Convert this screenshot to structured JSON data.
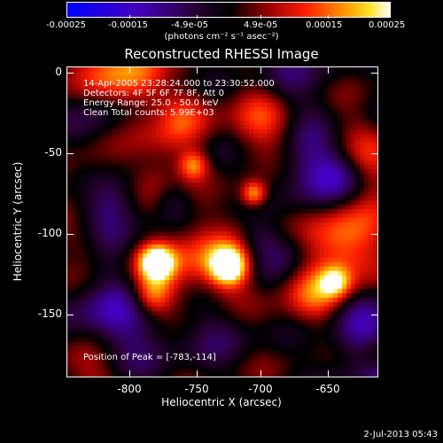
{
  "colorbar": {
    "ticks": [
      "-0.00025",
      "-0.00015",
      "-4.9e-05",
      "4.9e-05",
      "0.00015",
      "0.00025"
    ],
    "tick_values": [
      -0.00025,
      -0.00015,
      -4.9e-05,
      4.9e-05,
      0.00015,
      0.00025
    ],
    "units": "(photons cm⁻² s⁻¹ asec⁻²)",
    "range": [
      -0.00025,
      0.00025
    ],
    "colors": [
      "#0000ff",
      "#3a00b0",
      "#1a0010",
      "#000000",
      "#8b0000",
      "#ff2000",
      "#ff8c00",
      "#ffd000",
      "#ffffff"
    ]
  },
  "plot": {
    "title": "Reconstructed RHESSI Image",
    "annotations": {
      "time": "14-Apr-2005 23:28:24.000 to 23:30:52.000",
      "detectors": "Detectors: 4F 5F 6F 7F 8F, Att 0",
      "energy": "Energy Range: 25.0 - 50.0 keV",
      "clean": "Clean     Total counts: 5.99E+03",
      "peak": "Position of Peak = [-783,-114]"
    },
    "xlabel": "Heliocentric X (arcsec)",
    "ylabel": "Heliocentric Y (arcsec)",
    "xticks": [
      "-800",
      "-750",
      "-700",
      "-650"
    ],
    "xtick_values": [
      -800,
      -750,
      -700,
      -650
    ],
    "yticks": [
      "0",
      "-50",
      "-100",
      "-150"
    ],
    "ytick_values": [
      0,
      -50,
      -100,
      -150
    ],
    "xlim": [
      -838,
      -643
    ],
    "ylim": [
      -188,
      6
    ]
  },
  "timestamp": "2-Jul-2013 05:43"
}
